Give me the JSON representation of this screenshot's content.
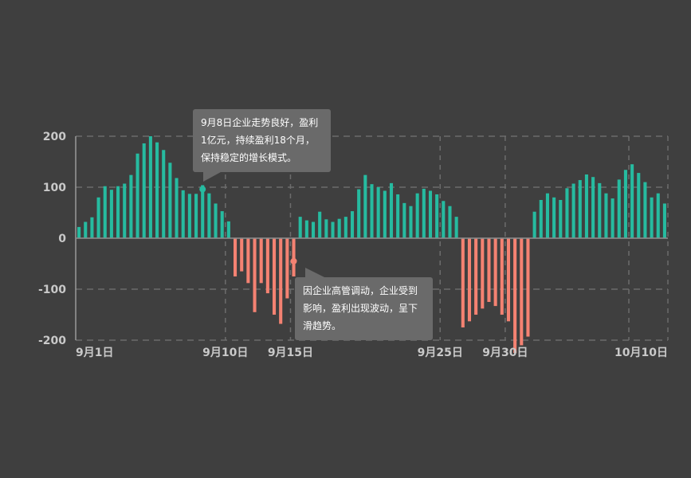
{
  "chart_data": {
    "type": "bar",
    "colors": {
      "positive": "#26bba0",
      "negative": "#f48272",
      "grid": "#6c6c6c",
      "axis": "#9a9a9a"
    },
    "ylim": [
      -200,
      200
    ],
    "y_ticks": [
      "200",
      "100",
      "0",
      "-100",
      "-200"
    ],
    "x_tick_labels": [
      {
        "index": 0,
        "label": "9月1日"
      },
      {
        "index": 23,
        "label": "9月10日"
      },
      {
        "index": 33,
        "label": "9月15日"
      },
      {
        "index": 56,
        "label": "9月25日"
      },
      {
        "index": 66,
        "label": "9月30日"
      },
      {
        "index": 85,
        "label": "10月10日"
      }
    ],
    "vgrid_indices": [
      23,
      33,
      56,
      66,
      85
    ],
    "values": [
      22,
      32,
      41,
      80,
      102,
      95,
      102,
      107,
      124,
      166,
      186,
      200,
      188,
      173,
      148,
      118,
      94,
      87,
      87,
      104,
      88,
      68,
      53,
      33,
      -75,
      -65,
      -88,
      -145,
      -88,
      -108,
      -150,
      -168,
      -118,
      -75,
      42,
      35,
      32,
      52,
      37,
      32,
      38,
      42,
      53,
      96,
      124,
      106,
      100,
      93,
      108,
      86,
      69,
      63,
      88,
      97,
      93,
      86,
      73,
      63,
      42,
      -175,
      -163,
      -150,
      -138,
      -125,
      -133,
      -150,
      -163,
      -225,
      -210,
      -193,
      52,
      75,
      88,
      80,
      75,
      98,
      107,
      114,
      125,
      120,
      108,
      88,
      78,
      115,
      134,
      145,
      128,
      110,
      80,
      88,
      68
    ],
    "annotations": [
      {
        "index": 19,
        "value": 96,
        "text": "9月8日企业走势良好，盈利1亿元，持续盈利18个月，保持稳定的增长模式。"
      },
      {
        "index": 33,
        "value": -45,
        "text": "因企业高管调动，企业受到影响，盈利出现波动，呈下滑趋势。"
      }
    ]
  }
}
